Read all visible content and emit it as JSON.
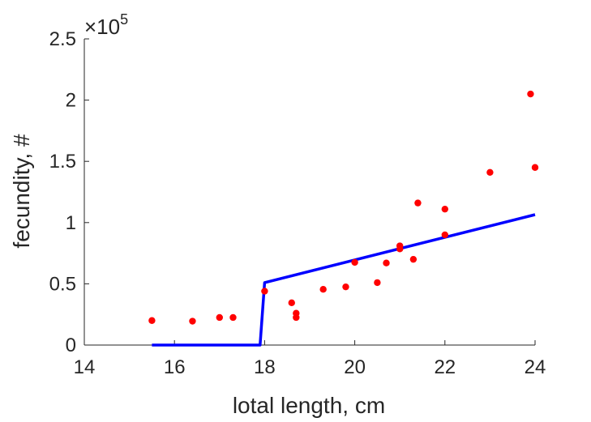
{
  "chart_data": {
    "type": "scatter",
    "xlabel": "lotal length, cm",
    "ylabel": "fecundity, #",
    "xlim": [
      14,
      24
    ],
    "ylim": [
      0,
      250000
    ],
    "x_ticks": [
      14,
      16,
      18,
      20,
      22,
      24
    ],
    "y_ticks": [
      0,
      50000,
      100000,
      150000,
      200000,
      250000
    ],
    "y_tick_labels": [
      "0",
      "0.5",
      "1",
      "1.5",
      "2",
      "2.5"
    ],
    "y_exponent_label": {
      "base": "×10",
      "power": "5"
    },
    "grid": false,
    "series": [
      {
        "kind": "points",
        "color": "#ff0000",
        "x": [
          15.5,
          16.4,
          17.0,
          17.3,
          18.0,
          18.6,
          18.7,
          18.7,
          19.3,
          19.8,
          20.0,
          20.5,
          20.7,
          21.0,
          21.0,
          21.3,
          21.4,
          22.0,
          22.0,
          23.0,
          23.9,
          24.0
        ],
        "y": [
          20000,
          19500,
          22500,
          22500,
          44000,
          34500,
          26000,
          22500,
          45500,
          47500,
          67500,
          51000,
          67000,
          78500,
          81000,
          70000,
          116000,
          111000,
          90000,
          141000,
          205000,
          145000
        ]
      },
      {
        "kind": "line",
        "color": "#0000ff",
        "x": [
          15.5,
          17.9,
          18.0,
          24.0
        ],
        "y": [
          0,
          0,
          51000,
          106500
        ]
      }
    ]
  }
}
